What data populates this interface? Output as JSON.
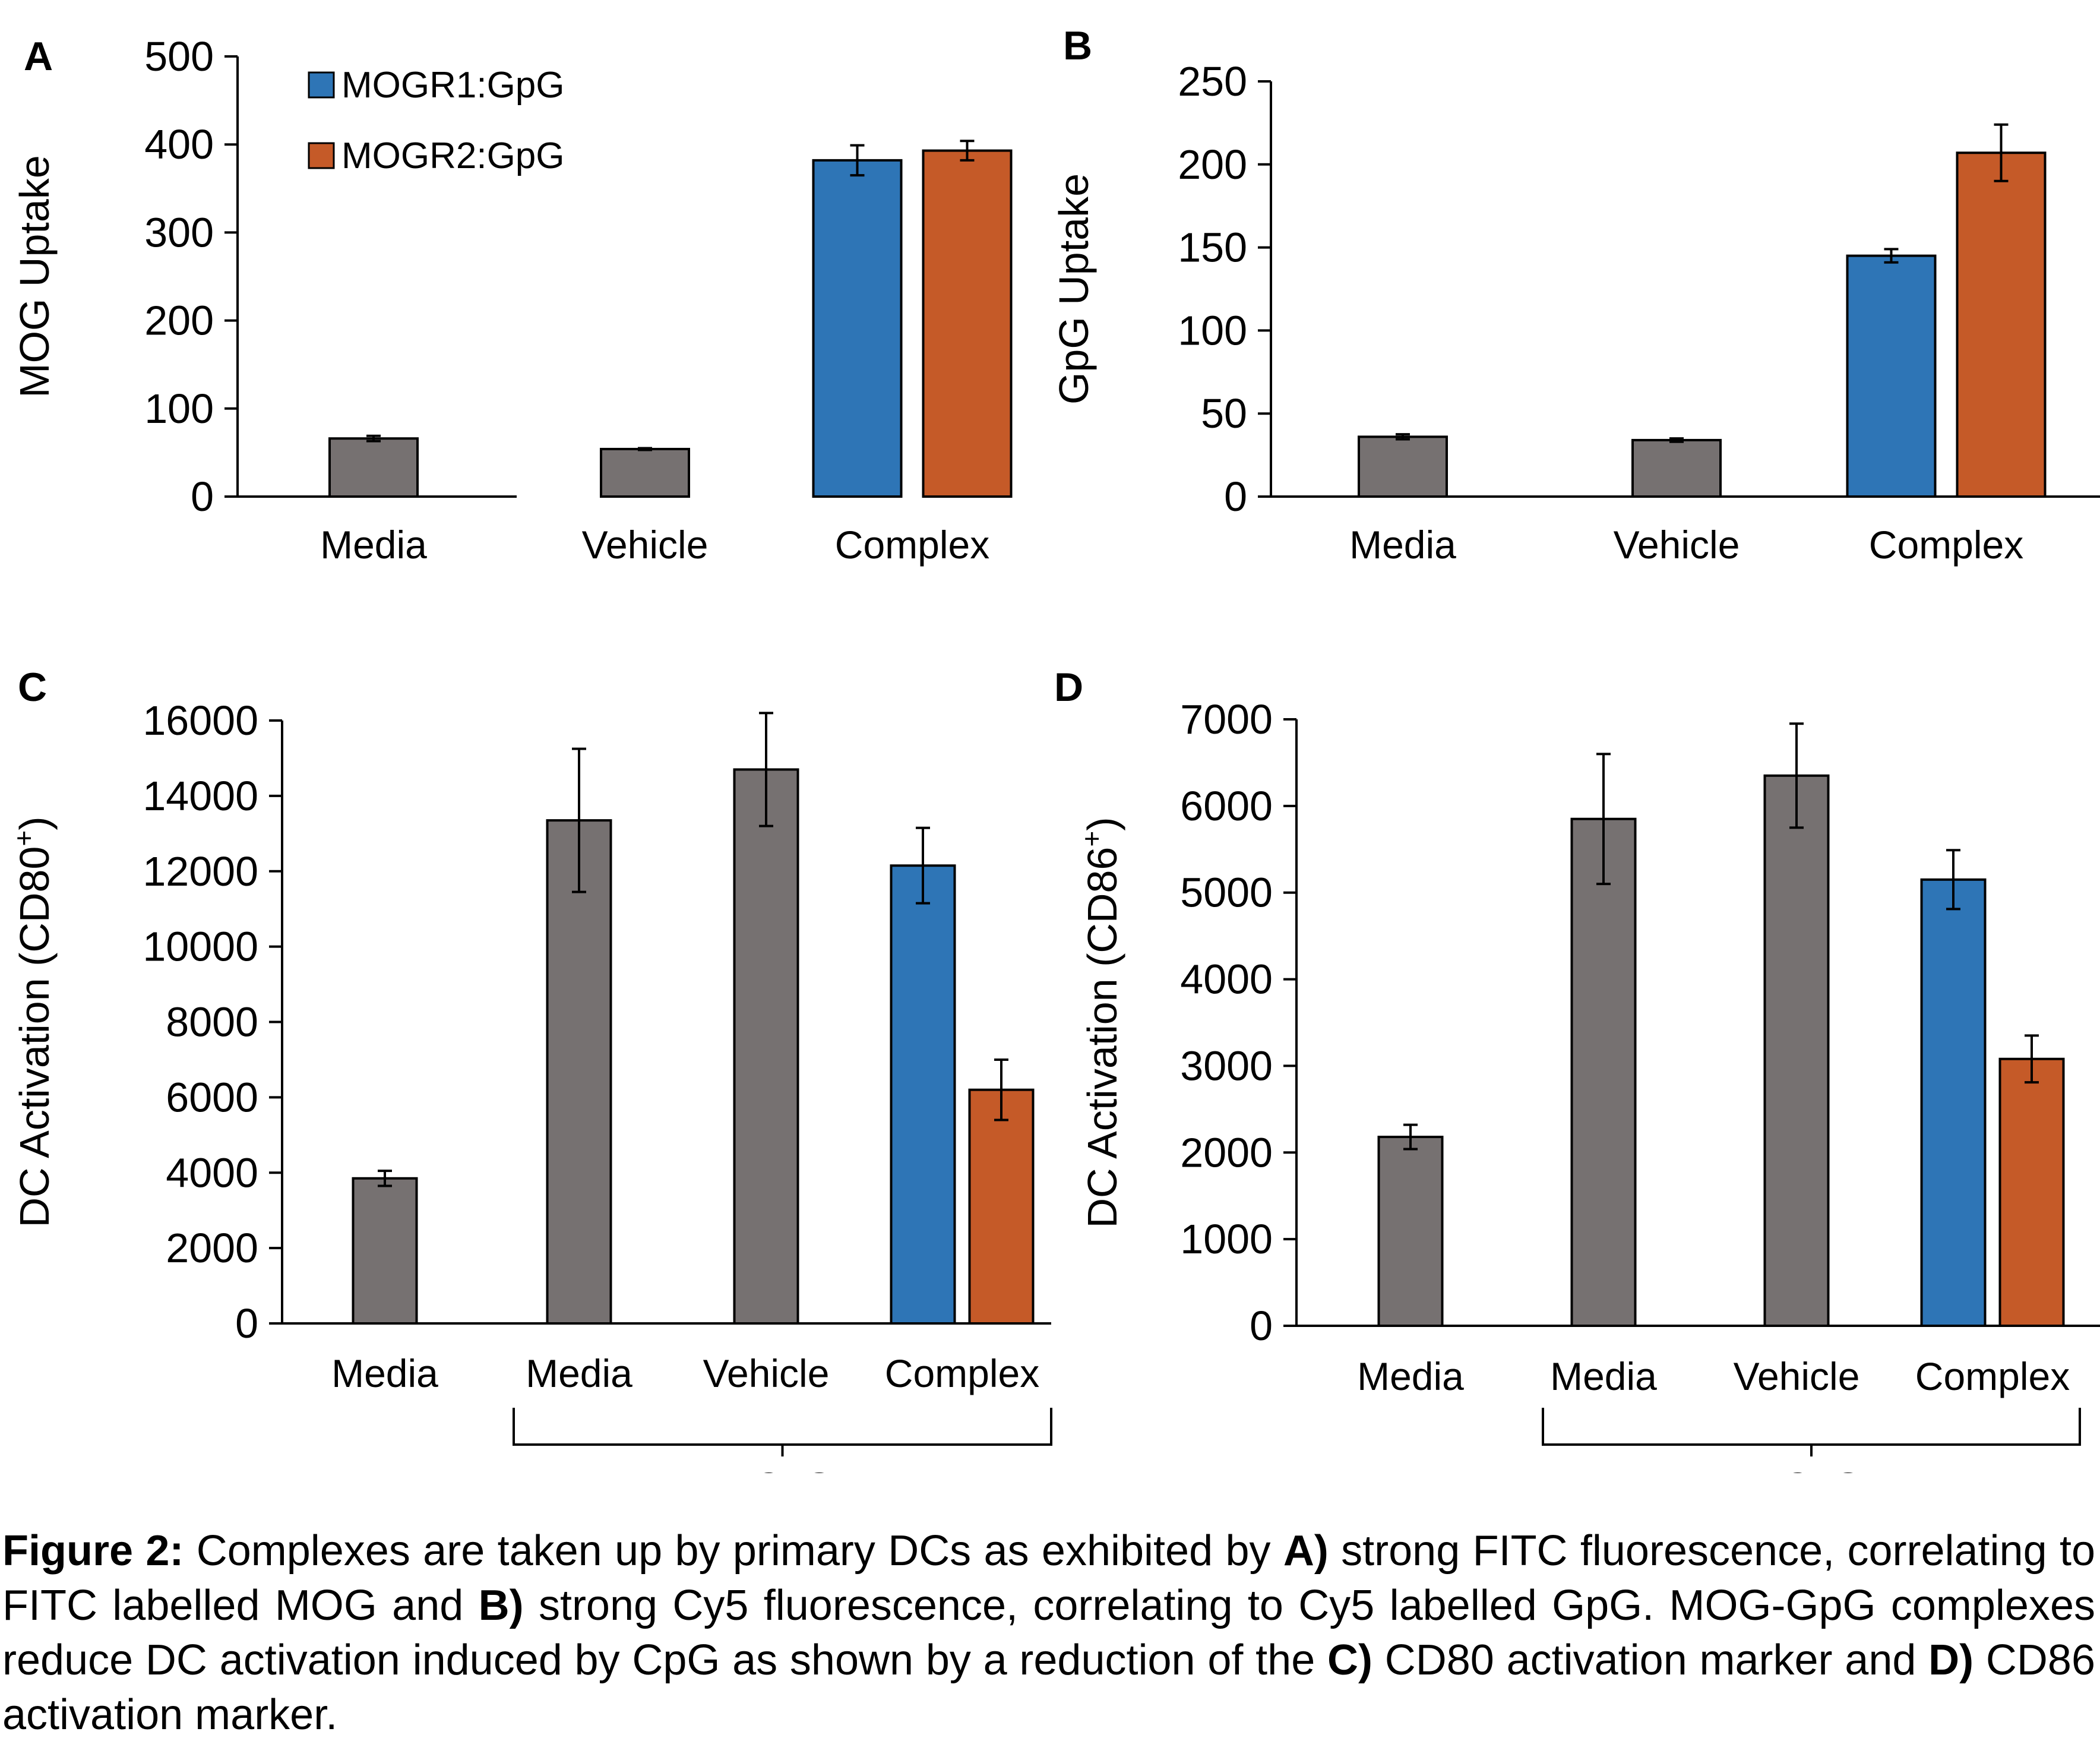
{
  "colors": {
    "gray": "#767171",
    "blue": "#2E75B6",
    "orange": "#C55A28",
    "axis": "#000000"
  },
  "chart_data": [
    {
      "panel": "A",
      "type": "bar",
      "ylabel": "MOG Uptake",
      "ylabel_sup": "",
      "ylim": [
        0,
        500
      ],
      "ticks": [
        0,
        100,
        200,
        300,
        400,
        500
      ],
      "legend": [
        {
          "name": "MOGR1:GpG",
          "color": "#2E75B6"
        },
        {
          "name": "MOGR2:GpG",
          "color": "#C55A28"
        }
      ],
      "categories": [
        "Media",
        "Vehicle",
        "Complex"
      ],
      "bars": [
        {
          "group": 0,
          "value": 66,
          "error": 3,
          "color": "#767171"
        },
        {
          "group": 1,
          "value": 54,
          "error": 1,
          "color": "#767171"
        },
        {
          "group": 2,
          "value": 382,
          "error": 17,
          "color": "#2E75B6"
        },
        {
          "group": 2,
          "value": 393,
          "error": 11,
          "color": "#C55A28"
        }
      ]
    },
    {
      "panel": "B",
      "type": "bar",
      "ylabel": "GpG Uptake",
      "ylabel_sup": "",
      "ylim": [
        0,
        250
      ],
      "ticks": [
        0,
        50,
        100,
        150,
        200,
        250
      ],
      "categories": [
        "Media",
        "Vehicle",
        "Complex"
      ],
      "bars": [
        {
          "group": 0,
          "value": 36,
          "error": 1.5,
          "color": "#767171"
        },
        {
          "group": 1,
          "value": 34,
          "error": 1,
          "color": "#767171"
        },
        {
          "group": 2,
          "value": 145,
          "error": 4,
          "color": "#2E75B6"
        },
        {
          "group": 2,
          "value": 207,
          "error": 17,
          "color": "#C55A28"
        }
      ]
    },
    {
      "panel": "C",
      "type": "bar",
      "ylabel": "DC Activation (CD80",
      "ylabel_sup": "+",
      "ylim": [
        0,
        16000
      ],
      "ticks": [
        0,
        2000,
        4000,
        6000,
        8000,
        10000,
        12000,
        14000,
        16000
      ],
      "categories": [
        "Media",
        "Media",
        "Vehicle",
        "Complex"
      ],
      "bracket": "+CpG",
      "bars": [
        {
          "group": 0,
          "value": 3850,
          "error": 200,
          "color": "#767171"
        },
        {
          "group": 1,
          "value": 13350,
          "error": 1900,
          "color": "#767171"
        },
        {
          "group": 2,
          "value": 14700,
          "error": 1500,
          "color": "#767171"
        },
        {
          "group": 3,
          "value": 12150,
          "error": 1000,
          "color": "#2E75B6"
        },
        {
          "group": 3,
          "value": 6200,
          "error": 800,
          "color": "#C55A28"
        }
      ]
    },
    {
      "panel": "D",
      "type": "bar",
      "ylabel": "DC Activation (CD86",
      "ylabel_sup": "+",
      "ylim": [
        0,
        7000
      ],
      "ticks": [
        0,
        1000,
        2000,
        3000,
        4000,
        5000,
        6000,
        7000
      ],
      "categories": [
        "Media",
        "Media",
        "Vehicle",
        "Complex"
      ],
      "bracket": "+CpG",
      "bars": [
        {
          "group": 0,
          "value": 2180,
          "error": 140,
          "color": "#767171"
        },
        {
          "group": 1,
          "value": 5850,
          "error": 750,
          "color": "#767171"
        },
        {
          "group": 2,
          "value": 6350,
          "error": 600,
          "color": "#767171"
        },
        {
          "group": 3,
          "value": 5150,
          "error": 340,
          "color": "#2E75B6"
        },
        {
          "group": 3,
          "value": 3080,
          "error": 270,
          "color": "#C55A28"
        }
      ]
    }
  ],
  "caption": [
    {
      "text": "Figure 2:",
      "bold": true
    },
    {
      "text": " Complexes are taken up by primary DCs as exhibited by ",
      "bold": false
    },
    {
      "text": "A)",
      "bold": true
    },
    {
      "text": " strong FITC fluorescence, correlating to FITC labelled MOG and ",
      "bold": false
    },
    {
      "text": "B)",
      "bold": true
    },
    {
      "text": " strong Cy5 fluorescence, correlating to Cy5 labelled GpG. MOG-GpG complexes reduce DC activation induced by CpG as shown by a reduction of the ",
      "bold": false
    },
    {
      "text": "C)",
      "bold": true
    },
    {
      "text": " CD80 activation marker and ",
      "bold": false
    },
    {
      "text": "D)",
      "bold": true
    },
    {
      "text": " CD86 activation marker.",
      "bold": false
    }
  ]
}
